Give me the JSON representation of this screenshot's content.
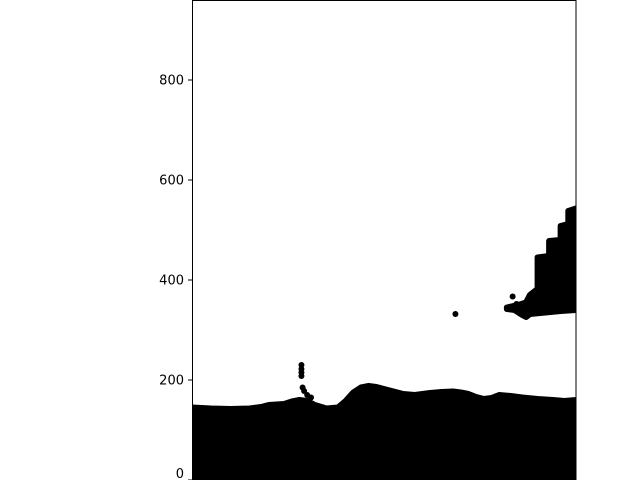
{
  "chart_data": {
    "type": "scatter",
    "title": "",
    "xlabel": "",
    "ylabel": "",
    "ylim": [
      0,
      960
    ],
    "xlim": [
      0,
      1
    ],
    "grid": false,
    "legend": "none",
    "marker_color": "#000000",
    "y_ticks": [
      {
        "value": 0,
        "label": "0"
      },
      {
        "value": 200,
        "label": "200"
      },
      {
        "value": 400,
        "label": "400"
      },
      {
        "value": 600,
        "label": "600"
      },
      {
        "value": 800,
        "label": "800"
      }
    ],
    "regions": [
      {
        "name": "ground-band",
        "top_profile": [
          [
            0.0,
            145
          ],
          [
            0.05,
            143
          ],
          [
            0.1,
            142
          ],
          [
            0.15,
            143
          ],
          [
            0.18,
            146
          ],
          [
            0.2,
            150
          ],
          [
            0.24,
            152
          ],
          [
            0.26,
            157
          ],
          [
            0.28,
            160
          ],
          [
            0.3,
            158
          ],
          [
            0.32,
            150
          ],
          [
            0.35,
            143
          ],
          [
            0.38,
            145
          ],
          [
            0.4,
            158
          ],
          [
            0.42,
            175
          ],
          [
            0.44,
            185
          ],
          [
            0.46,
            188
          ],
          [
            0.48,
            186
          ],
          [
            0.5,
            182
          ],
          [
            0.52,
            178
          ],
          [
            0.55,
            172
          ],
          [
            0.58,
            170
          ],
          [
            0.6,
            172
          ],
          [
            0.62,
            174
          ],
          [
            0.65,
            176
          ],
          [
            0.68,
            177
          ],
          [
            0.7,
            175
          ],
          [
            0.72,
            172
          ],
          [
            0.74,
            166
          ],
          [
            0.76,
            162
          ],
          [
            0.78,
            164
          ],
          [
            0.8,
            170
          ],
          [
            0.83,
            168
          ],
          [
            0.86,
            165
          ],
          [
            0.9,
            162
          ],
          [
            0.94,
            160
          ],
          [
            0.97,
            158
          ],
          [
            1.0,
            160
          ]
        ]
      },
      {
        "name": "right-cluster",
        "outline": [
          [
            0.82,
            345
          ],
          [
            0.85,
            350
          ],
          [
            0.87,
            355
          ],
          [
            0.88,
            370
          ],
          [
            0.9,
            382
          ],
          [
            0.9,
            445
          ],
          [
            0.93,
            448
          ],
          [
            0.93,
            478
          ],
          [
            0.96,
            480
          ],
          [
            0.96,
            508
          ],
          [
            0.98,
            512
          ],
          [
            0.98,
            538
          ],
          [
            1.0,
            543
          ],
          [
            1.0,
            340
          ],
          [
            0.96,
            338
          ],
          [
            0.92,
            335
          ],
          [
            0.88,
            332
          ],
          [
            0.87,
            326
          ],
          [
            0.86,
            330
          ],
          [
            0.84,
            340
          ],
          [
            0.82,
            342
          ]
        ]
      }
    ],
    "points": [
      [
        0.285,
        230
      ],
      [
        0.285,
        222
      ],
      [
        0.285,
        215
      ],
      [
        0.285,
        208
      ],
      [
        0.288,
        185
      ],
      [
        0.292,
        178
      ],
      [
        0.3,
        170
      ],
      [
        0.31,
        165
      ],
      [
        0.686,
        332
      ],
      [
        0.835,
        367
      ],
      [
        0.828,
        345
      ],
      [
        0.838,
        348
      ],
      [
        0.845,
        352
      ]
    ]
  }
}
